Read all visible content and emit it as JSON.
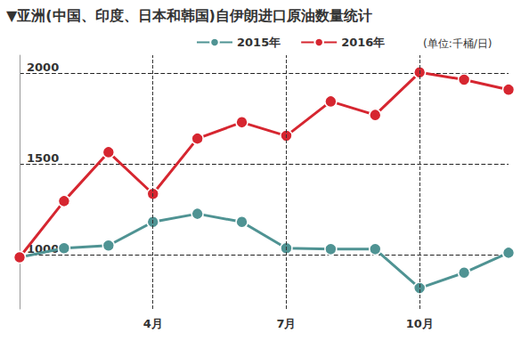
{
  "chart_data": {
    "type": "line",
    "title": "▼亚洲(中国、印度、日本和韩国)自伊朗进口原油数量统计",
    "subtitle": "(单位:千桶/日)",
    "categories": [
      null,
      null,
      null,
      "4月",
      null,
      null,
      "7月",
      null,
      null,
      "10月",
      null,
      null
    ],
    "series": [
      {
        "name": "2015年",
        "color": "#4f9393",
        "marker": "circle",
        "values": [
          985,
          1035,
          1050,
          1180,
          1225,
          1180,
          1035,
          1030,
          1030,
          815,
          900,
          1010
        ]
      },
      {
        "name": "2016年",
        "color": "#d62630",
        "marker": "circle",
        "values": [
          985,
          1295,
          1565,
          1335,
          1640,
          1730,
          1655,
          1845,
          1770,
          2005,
          1965,
          1910
        ]
      }
    ],
    "ylim": [
      700,
      2100
    ],
    "yticks": [
      1000,
      1500,
      2000
    ],
    "grid": true,
    "legend": "top"
  }
}
